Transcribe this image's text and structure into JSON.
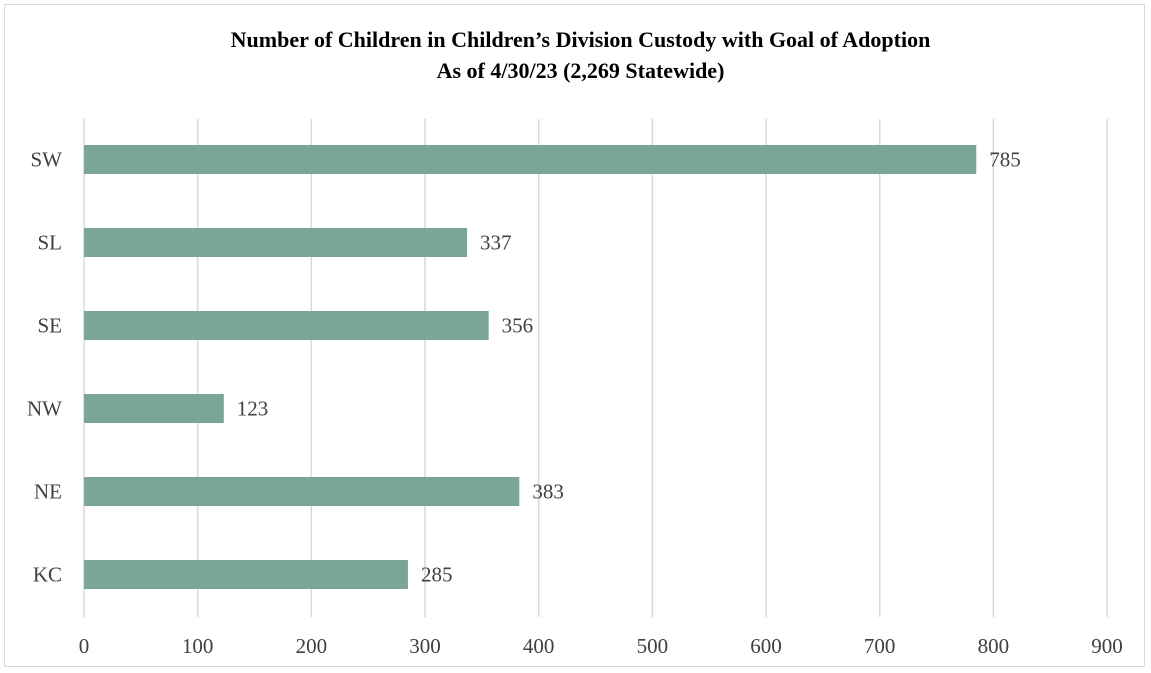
{
  "chart_data": {
    "type": "bar",
    "orientation": "horizontal",
    "title": "Number  of Children  in Children’s Division Custody  with Goal  of Adoption",
    "subtitle": "As of  4/30/23 (2,269 Statewide)",
    "categories": [
      "SW",
      "SL",
      "SE",
      "NW",
      "NE",
      "KC"
    ],
    "values": [
      785,
      337,
      356,
      123,
      383,
      285
    ],
    "data_labels": [
      "785",
      "337",
      "356",
      "123",
      "383",
      "285"
    ],
    "xlim": [
      0,
      900
    ],
    "xticks": [
      0,
      100,
      200,
      300,
      400,
      500,
      600,
      700,
      800,
      900
    ],
    "xtick_labels": [
      "0",
      "100",
      "200",
      "300",
      "400",
      "500",
      "600",
      "700",
      "800",
      "900"
    ],
    "xlabel": "",
    "ylabel": "",
    "grid": "vertical major gridlines",
    "legend": "none",
    "colors": {
      "bar": "#7ba599",
      "grid": "#d9d9d9",
      "text": "#404040",
      "title": "#000000"
    }
  }
}
